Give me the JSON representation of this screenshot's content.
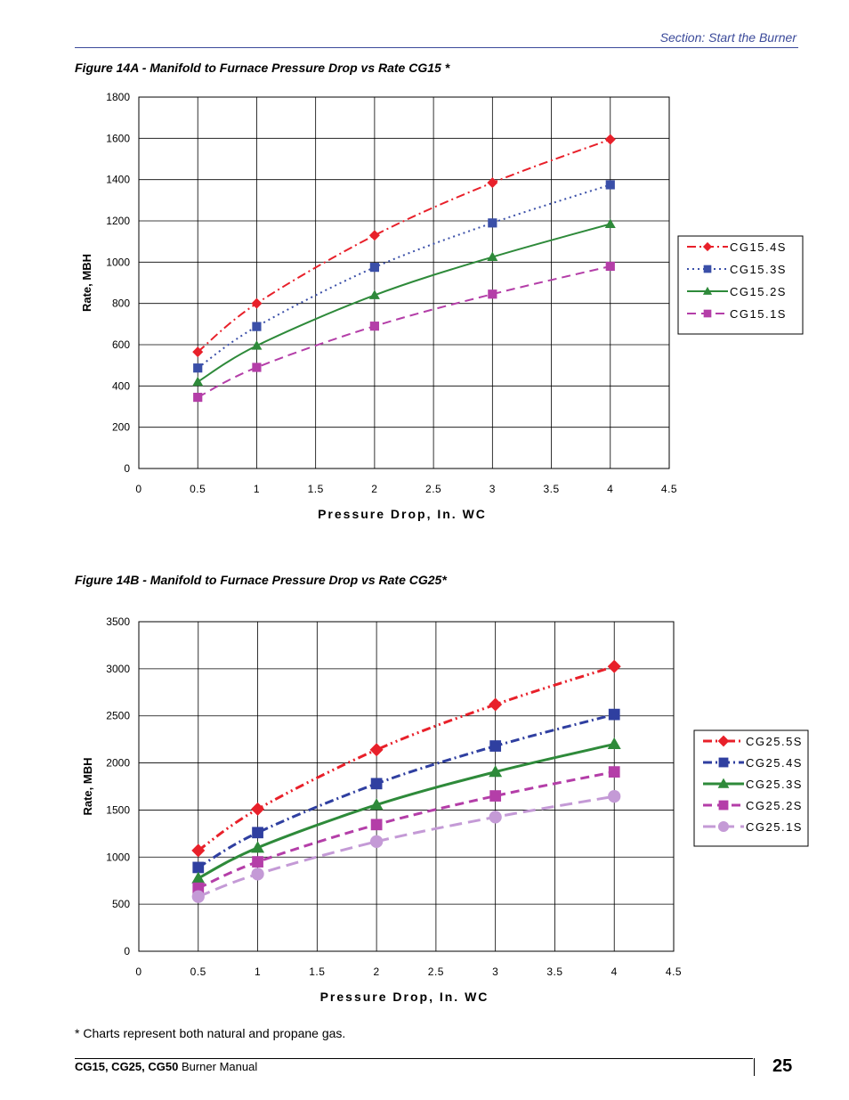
{
  "header": {
    "section": "Section: Start the Burner"
  },
  "footnote": "* Charts represent both natural and propane gas.",
  "footer": {
    "manual_bold": "CG15, CG25, CG50",
    "manual_rest": " Burner Manual",
    "page": "25"
  },
  "chart_data": [
    {
      "type": "line",
      "title": "Figure 14A - Manifold to Furnace Pressure Drop vs Rate CG15 *",
      "xlabel": "Pressure Drop, In. WC",
      "ylabel": "Rate, MBH",
      "xlim": [
        0,
        4.5
      ],
      "ylim": [
        0,
        1800
      ],
      "xticks": [
        "0",
        "0.5",
        "1",
        "1.5",
        "2",
        "2.5",
        "3",
        "3.5",
        "4",
        "4.5"
      ],
      "yticks": [
        "0",
        "200",
        "400",
        "600",
        "800",
        "1000",
        "1200",
        "1400",
        "1600",
        "1800"
      ],
      "grid": true,
      "legend": "right",
      "x": [
        0.5,
        1,
        2,
        3,
        4
      ],
      "series": [
        {
          "name": "CG15.4S",
          "color": "#e8202a",
          "marker": "diamond",
          "dash": "dashdot",
          "values": [
            565,
            800,
            1130,
            1385,
            1595
          ]
        },
        {
          "name": "CG15.3S",
          "color": "#3a4fa8",
          "marker": "square",
          "dash": "dotted",
          "values": [
            487,
            688,
            975,
            1190,
            1375
          ]
        },
        {
          "name": "CG15.2S",
          "color": "#2e8a3a",
          "marker": "triangle",
          "dash": "solid",
          "values": [
            420,
            595,
            840,
            1025,
            1185
          ]
        },
        {
          "name": "CG15.1S",
          "color": "#b43ea8",
          "marker": "square",
          "dash": "dashed",
          "values": [
            345,
            490,
            690,
            845,
            980
          ]
        }
      ]
    },
    {
      "type": "line",
      "title": "Figure 14B - Manifold to Furnace Pressure Drop vs Rate CG25*",
      "xlabel": "Pressure Drop, In. WC",
      "ylabel": "Rate, MBH",
      "xlim": [
        0,
        4.5
      ],
      "ylim": [
        0,
        3500
      ],
      "xticks": [
        "0",
        "0.5",
        "1",
        "1.5",
        "2",
        "2.5",
        "3",
        "3.5",
        "4",
        "4.5"
      ],
      "yticks": [
        "0",
        "500",
        "1000",
        "1500",
        "2000",
        "2500",
        "3000",
        "3500"
      ],
      "grid": true,
      "legend": "right",
      "x": [
        0.5,
        1,
        2,
        3,
        4
      ],
      "series": [
        {
          "name": "CG25.5S",
          "color": "#e8202a",
          "marker": "diamond",
          "dash": "dashdotdot",
          "values": [
            1070,
            1510,
            2140,
            2620,
            3025
          ]
        },
        {
          "name": "CG25.4S",
          "color": "#2f3fa0",
          "marker": "square",
          "dash": "dashdot",
          "values": [
            890,
            1260,
            1780,
            2180,
            2515
          ]
        },
        {
          "name": "CG25.3S",
          "color": "#2e8a3a",
          "marker": "triangle",
          "dash": "solid",
          "values": [
            775,
            1100,
            1555,
            1905,
            2200
          ]
        },
        {
          "name": "CG25.2S",
          "color": "#b43ea8",
          "marker": "square",
          "dash": "dashed",
          "values": [
            670,
            950,
            1345,
            1650,
            1905
          ]
        },
        {
          "name": "CG25.1S",
          "color": "#c49ad6",
          "marker": "circle",
          "dash": "longdash",
          "values": [
            580,
            820,
            1165,
            1425,
            1645
          ]
        }
      ]
    }
  ]
}
